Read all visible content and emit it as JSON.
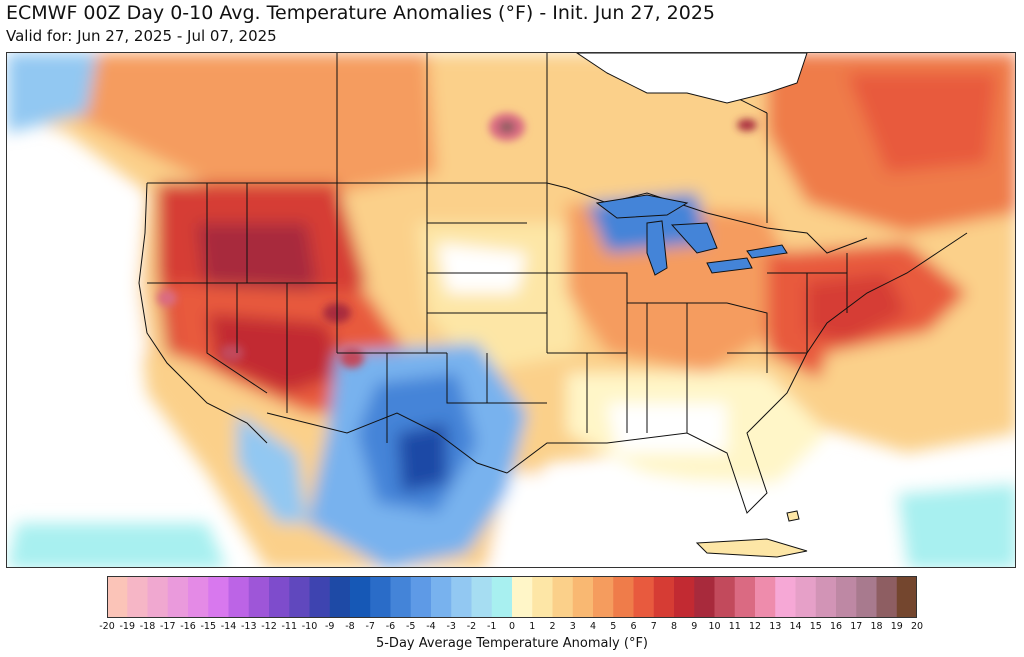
{
  "header": {
    "title": "ECMWF 00Z Day 0-10 Avg. Temperature Anomalies (°F) - Init. Jun 27, 2025",
    "subtitle": "Valid for: Jun 27, 2025 - Jul 07, 2025"
  },
  "legend": {
    "title": "5-Day Average Temperature Anomaly (°F)",
    "tick_labels": [
      "-20",
      "-19",
      "-18",
      "-17",
      "-16",
      "-15",
      "-14",
      "-13",
      "-12",
      "-11",
      "-10",
      "-9",
      "-8",
      "-7",
      "-6",
      "-5",
      "-4",
      "-3",
      "-2",
      "-1",
      "0",
      "1",
      "2",
      "3",
      "4",
      "5",
      "6",
      "7",
      "8",
      "9",
      "10",
      "11",
      "12",
      "13",
      "14",
      "15",
      "16",
      "17",
      "18",
      "19",
      "20"
    ],
    "colors": [
      "#fbc4b8",
      "#f6b6c6",
      "#f0a8d0",
      "#ea9adc",
      "#e48ae6",
      "#d878ee",
      "#bc64e6",
      "#9e56d8",
      "#7e4ccc",
      "#6048be",
      "#3e44b0",
      "#1e4aa6",
      "#1658b6",
      "#2a6cc8",
      "#4484d8",
      "#5e9ae6",
      "#78b2ee",
      "#92c8f2",
      "#a6ddf2",
      "#a8f0f0",
      "#ffffff",
      "#fff6c8",
      "#fde6a6",
      "#fbd08a",
      "#f9b872",
      "#f59c5e",
      "#ef7c4a",
      "#e85a3e",
      "#d63c34",
      "#c22a32",
      "#a82a3c",
      "#c24a5c",
      "#da6a82",
      "#ee8cac",
      "#f6a8d6",
      "#e6a0c8",
      "#d294b6",
      "#be88a4",
      "#a87a8e",
      "#8e5e62",
      "#74462e"
    ]
  },
  "map": {
    "region": "CONUS",
    "anomaly_zones": [
      {
        "area": "Pacific Northwest / Northern Rockies",
        "sign": "warm",
        "peak_f": 10
      },
      {
        "area": "Great Basin / Four Corners",
        "sign": "warm",
        "peak_f": 8
      },
      {
        "area": "Northeast / Mid-Atlantic",
        "sign": "warm",
        "peak_f": 7
      },
      {
        "area": "Eastern Canada",
        "sign": "warm",
        "peak_f": 6
      },
      {
        "area": "Texas / New Mexico / Northern Mexico",
        "sign": "cool",
        "peak_f": -8
      },
      {
        "area": "Pacific Ocean offshore",
        "sign": "near-normal",
        "peak_f": 0
      },
      {
        "area": "Southeast / Gulf Coast",
        "sign": "near-normal",
        "peak_f": 0
      }
    ]
  }
}
